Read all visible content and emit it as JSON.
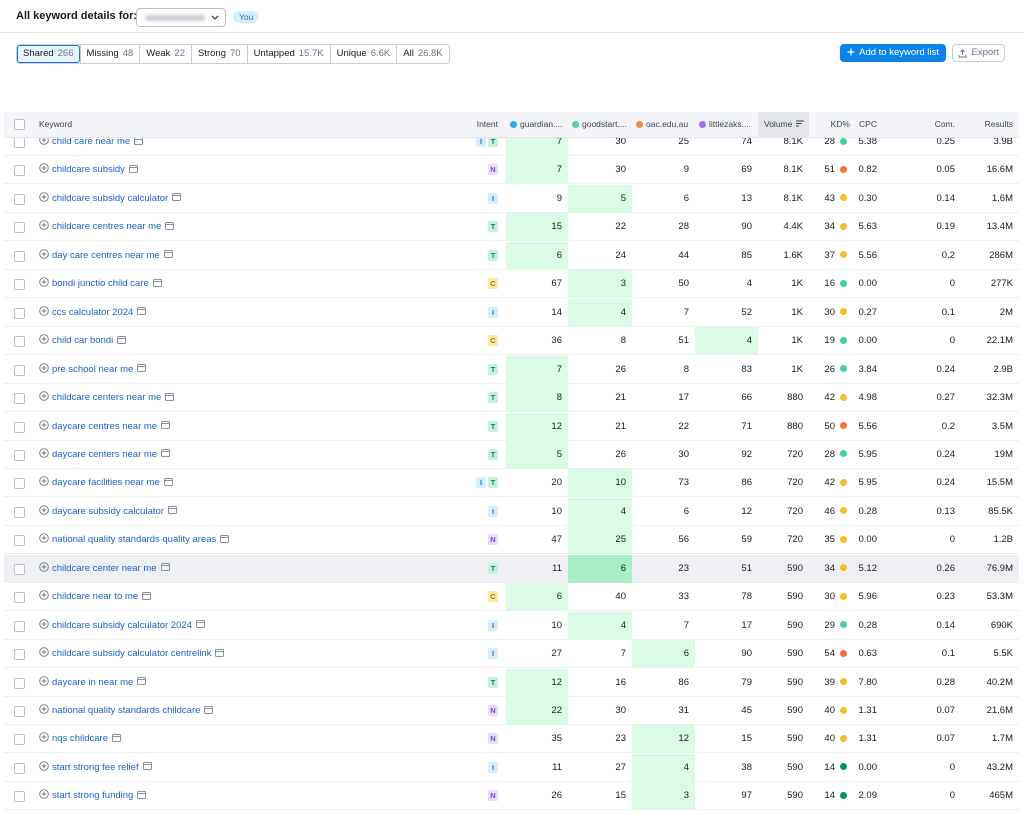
{
  "header": {
    "title": "All keyword details for:",
    "badge": "You"
  },
  "tabs": [
    {
      "label": "Shared",
      "count": "266",
      "active": true
    },
    {
      "label": "Missing",
      "count": "48"
    },
    {
      "label": "Weak",
      "count": "22"
    },
    {
      "label": "Strong",
      "count": "70"
    },
    {
      "label": "Untapped",
      "count": "15.7K"
    },
    {
      "label": "Unique",
      "count": "6.6K"
    },
    {
      "label": "All",
      "count": "26.8K"
    }
  ],
  "buttons": {
    "add": "Add to keyword list",
    "export": "Export"
  },
  "columns": {
    "keyword": "Keyword",
    "intent": "Intent",
    "competitors": [
      {
        "name": "guardian....",
        "color": "#2fa8f0"
      },
      {
        "name": "goodstart....",
        "color": "#4fd39a"
      },
      {
        "name": "oac.edu.au",
        "color": "#f08a3c"
      },
      {
        "name": "littlezaks....",
        "color": "#a46ef0"
      }
    ],
    "volume": "Volume",
    "kd": "KD%",
    "cpc": "CPC",
    "com": "Com.",
    "results": "Results"
  },
  "intent_colors": {
    "I": {
      "bg": "#d6ecff",
      "fg": "#1a73c9"
    },
    "T": {
      "bg": "#c4f1dc",
      "fg": "#00875f"
    },
    "N": {
      "bg": "#e9ddff",
      "fg": "#7445d6"
    },
    "C": {
      "bg": "#ffe6a3",
      "fg": "#a87000"
    }
  },
  "rows": [
    {
      "keyword": "child care near me",
      "intent": [
        "I",
        "T"
      ],
      "positions": [
        "7",
        "30",
        "25",
        "74"
      ],
      "volume": "8.1K",
      "kd": "28",
      "kd_color": "#45d19a",
      "cpc": "5.38",
      "com": "0.25",
      "results": "3.9B"
    },
    {
      "keyword": "childcare subsidy",
      "intent": [
        "N"
      ],
      "positions": [
        "7",
        "30",
        "9",
        "69"
      ],
      "volume": "8.1K",
      "kd": "51",
      "kd_color": "#f2703e",
      "cpc": "0.82",
      "com": "0.05",
      "results": "16.6M"
    },
    {
      "keyword": "childcare subsidy calculator",
      "intent": [
        "I"
      ],
      "positions": [
        "9",
        "5",
        "6",
        "13"
      ],
      "volume": "8.1K",
      "kd": "43",
      "kd_color": "#f5be2e",
      "cpc": "0.30",
      "com": "0.14",
      "results": "1.6M"
    },
    {
      "keyword": "childcare centres near me",
      "intent": [
        "T"
      ],
      "positions": [
        "15",
        "22",
        "28",
        "90"
      ],
      "volume": "4.4K",
      "kd": "34",
      "kd_color": "#f5be2e",
      "cpc": "5.63",
      "com": "0.19",
      "results": "13.4M"
    },
    {
      "keyword": "day care centres near me",
      "intent": [
        "T"
      ],
      "positions": [
        "6",
        "24",
        "44",
        "85"
      ],
      "volume": "1.6K",
      "kd": "37",
      "kd_color": "#f5be2e",
      "cpc": "5.56",
      "com": "0.2",
      "results": "286M"
    },
    {
      "keyword": "bondi junctio child care",
      "intent": [
        "C"
      ],
      "positions": [
        "67",
        "3",
        "50",
        "4"
      ],
      "volume": "1K",
      "kd": "16",
      "kd_color": "#45d19a",
      "cpc": "0.00",
      "com": "0",
      "results": "277K"
    },
    {
      "keyword": "ccs calculator 2024",
      "intent": [
        "I"
      ],
      "positions": [
        "14",
        "4",
        "7",
        "52"
      ],
      "volume": "1K",
      "kd": "30",
      "kd_color": "#f5be2e",
      "cpc": "0.27",
      "com": "0.1",
      "results": "2M"
    },
    {
      "keyword": "child car bondi",
      "intent": [
        "C"
      ],
      "positions": [
        "36",
        "8",
        "51",
        "4"
      ],
      "volume": "1K",
      "kd": "19",
      "kd_color": "#45d19a",
      "cpc": "0.00",
      "com": "0",
      "results": "22.1M"
    },
    {
      "keyword": "pre school near me",
      "intent": [
        "T"
      ],
      "positions": [
        "7",
        "26",
        "8",
        "83"
      ],
      "volume": "1K",
      "kd": "26",
      "kd_color": "#45d19a",
      "cpc": "3.84",
      "com": "0.24",
      "results": "2.9B"
    },
    {
      "keyword": "childcare centers near me",
      "intent": [
        "T"
      ],
      "positions": [
        "8",
        "21",
        "17",
        "66"
      ],
      "volume": "880",
      "kd": "42",
      "kd_color": "#f5be2e",
      "cpc": "4.98",
      "com": "0.27",
      "results": "32.3M"
    },
    {
      "keyword": "daycare centres near me",
      "intent": [
        "T"
      ],
      "positions": [
        "12",
        "21",
        "22",
        "71"
      ],
      "volume": "880",
      "kd": "50",
      "kd_color": "#f2703e",
      "cpc": "5.56",
      "com": "0.2",
      "results": "3.5M"
    },
    {
      "keyword": "daycare centers near me",
      "intent": [
        "T"
      ],
      "positions": [
        "5",
        "26",
        "30",
        "92"
      ],
      "volume": "720",
      "kd": "28",
      "kd_color": "#45d19a",
      "cpc": "5.95",
      "com": "0.24",
      "results": "19M"
    },
    {
      "keyword": "daycare facilities near me",
      "intent": [
        "I",
        "T"
      ],
      "positions": [
        "20",
        "10",
        "73",
        "86"
      ],
      "volume": "720",
      "kd": "42",
      "kd_color": "#f5be2e",
      "cpc": "5.95",
      "com": "0.24",
      "results": "15.5M"
    },
    {
      "keyword": "daycare subsidy calculator",
      "intent": [
        "I"
      ],
      "positions": [
        "10",
        "4",
        "6",
        "12"
      ],
      "volume": "720",
      "kd": "46",
      "kd_color": "#f5be2e",
      "cpc": "0.28",
      "com": "0.13",
      "results": "85.5K"
    },
    {
      "keyword": "national quality standards quality areas",
      "intent": [
        "N"
      ],
      "positions": [
        "47",
        "25",
        "56",
        "59"
      ],
      "volume": "720",
      "kd": "35",
      "kd_color": "#f5be2e",
      "cpc": "0.00",
      "com": "0",
      "results": "1.2B"
    },
    {
      "keyword": "childcare center near me",
      "intent": [
        "T"
      ],
      "positions": [
        "11",
        "6",
        "23",
        "51"
      ],
      "volume": "590",
      "kd": "34",
      "kd_color": "#f5be2e",
      "cpc": "5.12",
      "com": "0.26",
      "results": "76.9M",
      "hovered": true
    },
    {
      "keyword": "childcare near to me",
      "intent": [
        "C"
      ],
      "positions": [
        "6",
        "40",
        "33",
        "78"
      ],
      "volume": "590",
      "kd": "30",
      "kd_color": "#f5be2e",
      "cpc": "5.96",
      "com": "0.23",
      "results": "53.3M"
    },
    {
      "keyword": "childcare subsidy calculator 2024",
      "intent": [
        "I"
      ],
      "positions": [
        "10",
        "4",
        "7",
        "17"
      ],
      "volume": "590",
      "kd": "29",
      "kd_color": "#45d19a",
      "cpc": "0.28",
      "com": "0.14",
      "results": "690K"
    },
    {
      "keyword": "childcare subsidy calculator centrelink",
      "intent": [
        "I"
      ],
      "positions": [
        "27",
        "7",
        "6",
        "90"
      ],
      "volume": "590",
      "kd": "54",
      "kd_color": "#f2703e",
      "cpc": "0.63",
      "com": "0.1",
      "results": "5.5K"
    },
    {
      "keyword": "daycare in near me",
      "intent": [
        "T"
      ],
      "positions": [
        "12",
        "16",
        "86",
        "79"
      ],
      "volume": "590",
      "kd": "39",
      "kd_color": "#f5be2e",
      "cpc": "7.80",
      "com": "0.28",
      "results": "40.2M"
    },
    {
      "keyword": "national quality standards childcare",
      "intent": [
        "N"
      ],
      "positions": [
        "22",
        "30",
        "31",
        "45"
      ],
      "volume": "590",
      "kd": "40",
      "kd_color": "#f5be2e",
      "cpc": "1.31",
      "com": "0.07",
      "results": "21.6M"
    },
    {
      "keyword": "nqs childcare",
      "intent": [
        "N"
      ],
      "positions": [
        "35",
        "23",
        "12",
        "15"
      ],
      "volume": "590",
      "kd": "40",
      "kd_color": "#f5be2e",
      "cpc": "1.31",
      "com": "0.07",
      "results": "1.7M"
    },
    {
      "keyword": "start strong fee relief",
      "intent": [
        "I"
      ],
      "positions": [
        "11",
        "27",
        "4",
        "38"
      ],
      "volume": "590",
      "kd": "14",
      "kd_color": "#00926b",
      "cpc": "0.00",
      "com": "0",
      "results": "43.2M"
    },
    {
      "keyword": "start strong funding",
      "intent": [
        "N"
      ],
      "positions": [
        "26",
        "15",
        "3",
        "97"
      ],
      "volume": "590",
      "kd": "14",
      "kd_color": "#00926b",
      "cpc": "2.09",
      "com": "0",
      "results": "465M"
    }
  ]
}
